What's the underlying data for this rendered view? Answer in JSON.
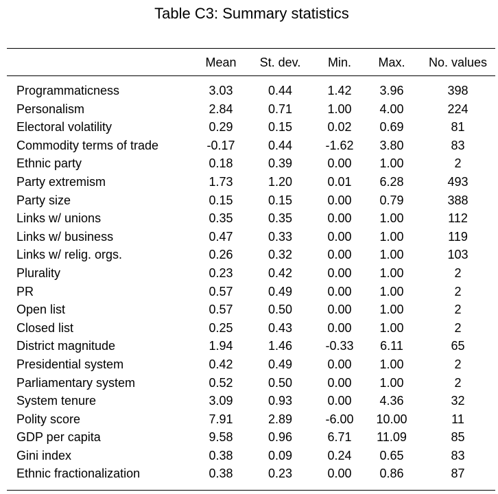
{
  "title": "Table C3: Summary statistics",
  "columns": [
    "Mean",
    "St. dev.",
    "Min.",
    "Max.",
    "No. values"
  ],
  "rows": [
    {
      "label": "Programmaticness",
      "mean": "3.03",
      "sd": "0.44",
      "min": "1.42",
      "max": "3.96",
      "n": "398"
    },
    {
      "label": "Personalism",
      "mean": "2.84",
      "sd": "0.71",
      "min": "1.00",
      "max": "4.00",
      "n": "224"
    },
    {
      "label": "Electoral volatility",
      "mean": "0.29",
      "sd": "0.15",
      "min": "0.02",
      "max": "0.69",
      "n": "81"
    },
    {
      "label": "Commodity terms of trade",
      "mean": "-0.17",
      "sd": "0.44",
      "min": "-1.62",
      "max": "3.80",
      "n": "83"
    },
    {
      "label": "Ethnic party",
      "mean": "0.18",
      "sd": "0.39",
      "min": "0.00",
      "max": "1.00",
      "n": "2"
    },
    {
      "label": "Party extremism",
      "mean": "1.73",
      "sd": "1.20",
      "min": "0.01",
      "max": "6.28",
      "n": "493"
    },
    {
      "label": "Party size",
      "mean": "0.15",
      "sd": "0.15",
      "min": "0.00",
      "max": "0.79",
      "n": "388"
    },
    {
      "label": "Links w/ unions",
      "mean": "0.35",
      "sd": "0.35",
      "min": "0.00",
      "max": "1.00",
      "n": "112"
    },
    {
      "label": "Links w/ business",
      "mean": "0.47",
      "sd": "0.33",
      "min": "0.00",
      "max": "1.00",
      "n": "119"
    },
    {
      "label": "Links w/ relig. orgs.",
      "mean": "0.26",
      "sd": "0.32",
      "min": "0.00",
      "max": "1.00",
      "n": "103"
    },
    {
      "label": "Plurality",
      "mean": "0.23",
      "sd": "0.42",
      "min": "0.00",
      "max": "1.00",
      "n": "2"
    },
    {
      "label": "PR",
      "mean": "0.57",
      "sd": "0.49",
      "min": "0.00",
      "max": "1.00",
      "n": "2"
    },
    {
      "label": "Open list",
      "mean": "0.57",
      "sd": "0.50",
      "min": "0.00",
      "max": "1.00",
      "n": "2"
    },
    {
      "label": "Closed list",
      "mean": "0.25",
      "sd": "0.43",
      "min": "0.00",
      "max": "1.00",
      "n": "2"
    },
    {
      "label": "District magnitude",
      "mean": "1.94",
      "sd": "1.46",
      "min": "-0.33",
      "max": "6.11",
      "n": "65"
    },
    {
      "label": "Presidential system",
      "mean": "0.42",
      "sd": "0.49",
      "min": "0.00",
      "max": "1.00",
      "n": "2"
    },
    {
      "label": "Parliamentary system",
      "mean": "0.52",
      "sd": "0.50",
      "min": "0.00",
      "max": "1.00",
      "n": "2"
    },
    {
      "label": "System tenure",
      "mean": "3.09",
      "sd": "0.93",
      "min": "0.00",
      "max": "4.36",
      "n": "32"
    },
    {
      "label": "Polity score",
      "mean": "7.91",
      "sd": "2.89",
      "min": "-6.00",
      "max": "10.00",
      "n": "11"
    },
    {
      "label": "GDP per capita",
      "mean": "9.58",
      "sd": "0.96",
      "min": "6.71",
      "max": "11.09",
      "n": "85"
    },
    {
      "label": "Gini index",
      "mean": "0.38",
      "sd": "0.09",
      "min": "0.24",
      "max": "0.65",
      "n": "83"
    },
    {
      "label": "Ethnic fractionalization",
      "mean": "0.38",
      "sd": "0.23",
      "min": "0.00",
      "max": "0.86",
      "n": "87"
    }
  ]
}
